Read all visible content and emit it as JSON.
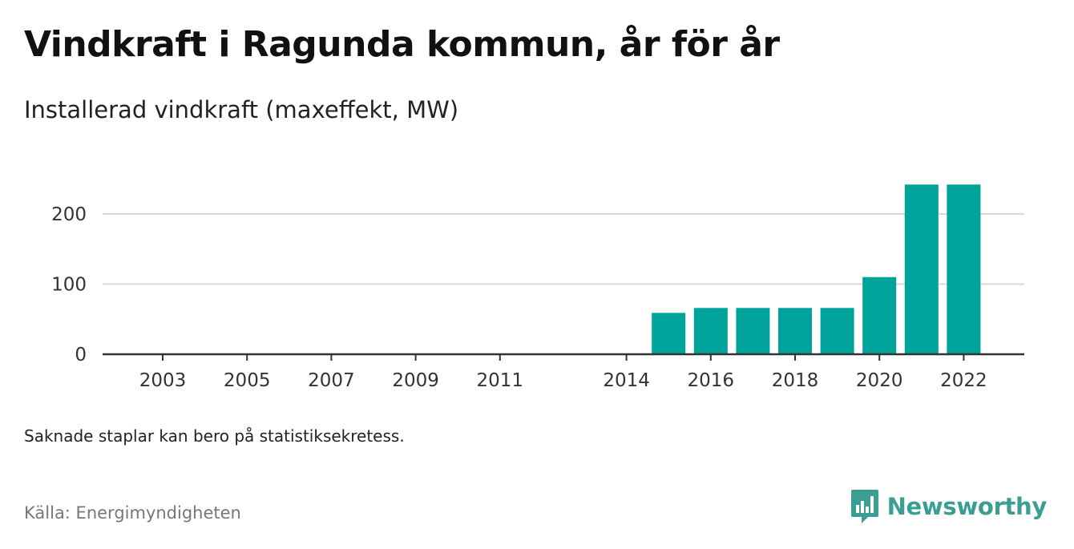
{
  "header": {
    "title": "Vindkraft i Ragunda kommun, år för år",
    "subtitle": "Installerad vindkraft (maxeffekt, MW)"
  },
  "footer": {
    "note": "Saknade staplar kan bero på statistiksekretess.",
    "source": "Källa: Energimyndigheten",
    "brand_name": "Newsworthy",
    "brand_icon": "newsworthy-logo-icon"
  },
  "colors": {
    "bar": "#00a39a",
    "grid": "#d9d9d9",
    "axis": "#333333",
    "brand": "#3a9e94"
  },
  "chart_data": {
    "type": "bar",
    "title": "Vindkraft i Ragunda kommun, år för år",
    "subtitle": "Installerad vindkraft (maxeffekt, MW)",
    "xlabel": "",
    "ylabel": "",
    "categories": [
      "2002",
      "2003",
      "2004",
      "2005",
      "2006",
      "2007",
      "2008",
      "2009",
      "2010",
      "2011",
      "2012",
      "2013",
      "2014",
      "2015",
      "2016",
      "2017",
      "2018",
      "2019",
      "2020",
      "2021",
      "2022"
    ],
    "values": [
      null,
      null,
      null,
      null,
      null,
      null,
      null,
      null,
      null,
      null,
      null,
      null,
      0,
      59,
      66,
      66,
      66,
      66,
      110,
      242,
      242
    ],
    "x_tick_labels": [
      "2003",
      "2005",
      "2007",
      "2009",
      "2011",
      "2014",
      "2016",
      "2018",
      "2020",
      "2022"
    ],
    "y_ticks": [
      0,
      100,
      200
    ],
    "ylim": [
      0,
      250
    ],
    "grid": true,
    "legend": "none"
  }
}
